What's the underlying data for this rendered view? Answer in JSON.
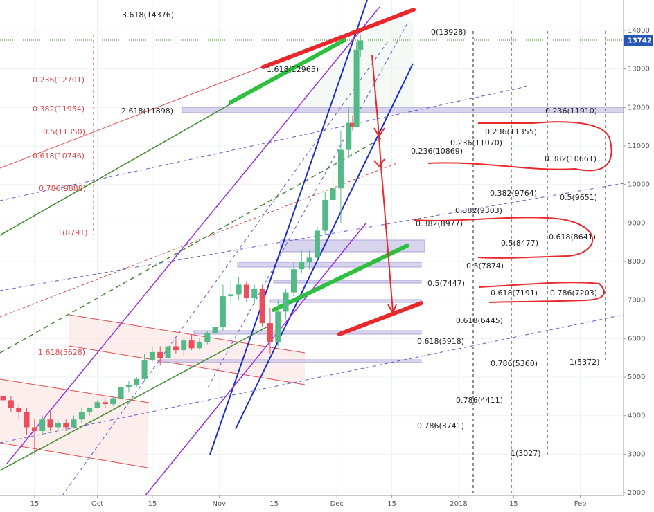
{
  "chart_data": {
    "type": "candlestick",
    "x": [
      6,
      8,
      10,
      12,
      14,
      16,
      18,
      20,
      22,
      24,
      26,
      28,
      30,
      32,
      34,
      36,
      38,
      40,
      42,
      44,
      46,
      48,
      50,
      52,
      54,
      56,
      58,
      60,
      62,
      64,
      66,
      68,
      70,
      72,
      74,
      76,
      78,
      80,
      82,
      84,
      86,
      88,
      90,
      92,
      94,
      95,
      96,
      97
    ],
    "open": [
      4500,
      4400,
      4200,
      4100,
      3700,
      3600,
      3900,
      3700,
      3800,
      3700,
      3900,
      4100,
      4200,
      4350,
      4300,
      4450,
      4750,
      4800,
      4950,
      5450,
      5650,
      5500,
      5800,
      5700,
      5950,
      5750,
      5900,
      6150,
      6300,
      7100,
      7150,
      7400,
      7050,
      7300,
      6400,
      5900,
      6700,
      7200,
      7800,
      8000,
      8100,
      8800,
      9600,
      9900,
      10900,
      11600,
      11500,
      13500
    ],
    "high": [
      4700,
      4500,
      4300,
      4200,
      3900,
      4000,
      4100,
      3900,
      3900,
      4000,
      4200,
      4200,
      4400,
      4450,
      4500,
      4800,
      4900,
      5000,
      5600,
      5800,
      5800,
      5900,
      6000,
      6000,
      6100,
      6000,
      6200,
      6400,
      7400,
      7500,
      7600,
      7500,
      7400,
      7400,
      6800,
      7000,
      7300,
      8000,
      8300,
      8300,
      8900,
      9800,
      10400,
      11400,
      12000,
      11800,
      13700,
      13900
    ],
    "low": [
      4300,
      4100,
      3900,
      3500,
      3000,
      3500,
      3600,
      3600,
      3600,
      3700,
      3800,
      4000,
      4200,
      4200,
      4250,
      4400,
      4600,
      4750,
      4900,
      5400,
      5300,
      5450,
      5600,
      5550,
      5700,
      5700,
      5850,
      6000,
      6200,
      6900,
      7000,
      6950,
      6900,
      6300,
      5600,
      5800,
      6500,
      7100,
      7700,
      7800,
      8000,
      8700,
      9200,
      9000,
      10700,
      11400,
      11500,
      13300
    ],
    "close": [
      4400,
      4200,
      4100,
      3700,
      3600,
      3900,
      3700,
      3800,
      3700,
      3900,
      4100,
      4200,
      4350,
      4300,
      4450,
      4750,
      4800,
      4950,
      5450,
      5650,
      5500,
      5800,
      5700,
      5950,
      5750,
      5900,
      6150,
      6300,
      7100,
      7150,
      7400,
      7050,
      7300,
      6400,
      5900,
      6700,
      7200,
      7800,
      8000,
      8100,
      8800,
      9600,
      9900,
      10900,
      11600,
      11500,
      13500,
      13742
    ],
    "up_color": "#53b987",
    "down_color": "#eb4d5c",
    "xlim": [
      5.2,
      164
    ],
    "ylim": [
      1570,
      14790
    ],
    "xticks": [
      {
        "value": 14,
        "label": "15"
      },
      {
        "value": 30,
        "label": "Oct"
      },
      {
        "value": 44,
        "label": "15"
      },
      {
        "value": 61,
        "label": "Nov"
      },
      {
        "value": 75,
        "label": "15"
      },
      {
        "value": 91,
        "label": "Dec"
      },
      {
        "value": 105,
        "label": "15"
      },
      {
        "value": 122,
        "label": "2018"
      },
      {
        "value": 136,
        "label": "15"
      },
      {
        "value": 153,
        "label": "Feb"
      }
    ],
    "yticks": [
      2000,
      3000,
      4000,
      5000,
      6000,
      7000,
      8000,
      9000,
      10000,
      11000,
      12000,
      13000,
      14000
    ],
    "grid": true,
    "annotations": [
      "3.618(14376)",
      "0(13928)",
      "1.618(12965)",
      "0.236(12701)",
      "0.382(11954)",
      "2.618(11898)",
      "0.236(11910)",
      "0.5(11350)",
      "0.236(11355)",
      "0.236(11070)",
      "0.236(10869)",
      "0.618(10746)",
      "0.382(10661)",
      "0.786(9888)",
      "0.382(9764)",
      "0.5(9651)",
      "0.382(9303)",
      "1(8791)",
      "0.382(8977)",
      "0.618(8641)",
      "0.5(8477)",
      "0.5(7874)",
      "0.5(7447)",
      "0.618(7191)",
      "0.786(7203)",
      "0.618(6445)",
      "0.618(5918)",
      "1.618(5628)",
      "0.786(5360)",
      "1(5372)",
      "0.786(4411)",
      "0.786(3741)",
      "1(3027)"
    ]
  }
}
